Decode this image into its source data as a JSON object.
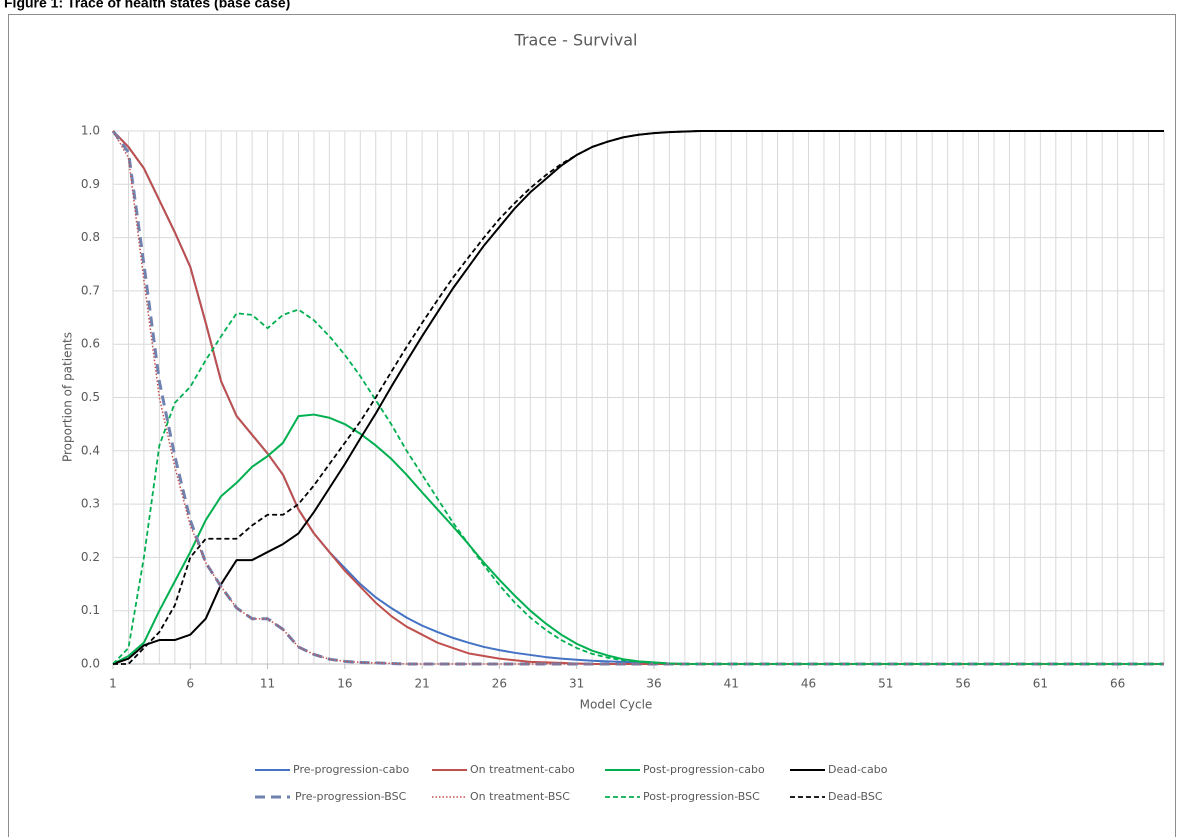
{
  "caption": "Figure 1: Trace of health states (base case)",
  "chart_data": {
    "type": "line",
    "title": "Trace - Survival",
    "x_label": "Model Cycle",
    "y_label": "Proportion of patients",
    "x": [
      1,
      2,
      3,
      4,
      5,
      6,
      7,
      8,
      9,
      10,
      11,
      12,
      13,
      14,
      15,
      16,
      17,
      18,
      19,
      20,
      21,
      22,
      23,
      24,
      25,
      26,
      27,
      28,
      29,
      30,
      31,
      32,
      33,
      34,
      35,
      36,
      37,
      38,
      39,
      40,
      41,
      42,
      43,
      44,
      45,
      46,
      47,
      48,
      49,
      50,
      51,
      52,
      53,
      54,
      55,
      56,
      57,
      58,
      59,
      60,
      61,
      62,
      63,
      64,
      65,
      66,
      67,
      68,
      69
    ],
    "xlim": [
      1,
      69
    ],
    "xticks": [
      1,
      6,
      11,
      16,
      21,
      26,
      31,
      36,
      41,
      46,
      51,
      56,
      61,
      66
    ],
    "ylim": [
      0,
      1
    ],
    "yticks": [
      {
        "value": 0,
        "label": "0.0"
      },
      0.1,
      0.2,
      0.3,
      0.4,
      0.5,
      0.6,
      0.7,
      0.8,
      0.9,
      {
        "value": 1,
        "label": "1.0"
      }
    ],
    "grid": true,
    "series": [
      {
        "name": "Pre-progression-cabo",
        "color": "#4472c4",
        "dash": "solid",
        "values": [
          1,
          0.97,
          0.93,
          0.87,
          0.81,
          0.745,
          0.64,
          0.53,
          0.465,
          0.43,
          0.395,
          0.355,
          0.29,
          0.245,
          0.21,
          0.18,
          0.15,
          0.125,
          0.105,
          0.087,
          0.072,
          0.06,
          0.049,
          0.04,
          0.032,
          0.026,
          0.021,
          0.017,
          0.013,
          0.01,
          0.008,
          0.006,
          0.005,
          0.004,
          0.003,
          0.002,
          0.001,
          0,
          0,
          0,
          0,
          0,
          0,
          0,
          0,
          0,
          0,
          0,
          0,
          0,
          0,
          0,
          0,
          0,
          0,
          0,
          0,
          0,
          0,
          0,
          0,
          0,
          0,
          0,
          0,
          0,
          0,
          0,
          0
        ]
      },
      {
        "name": "On treatment-cabo",
        "color": "#c0504d",
        "dash": "solid",
        "values": [
          1,
          0.97,
          0.93,
          0.87,
          0.81,
          0.745,
          0.64,
          0.53,
          0.465,
          0.43,
          0.395,
          0.355,
          0.29,
          0.245,
          0.21,
          0.175,
          0.145,
          0.115,
          0.09,
          0.07,
          0.055,
          0.04,
          0.03,
          0.02,
          0.015,
          0.01,
          0.007,
          0.004,
          0.003,
          0.002,
          0.001,
          0,
          0,
          0,
          0,
          0,
          0,
          0,
          0,
          0,
          0,
          0,
          0,
          0,
          0,
          0,
          0,
          0,
          0,
          0,
          0,
          0,
          0,
          0,
          0,
          0,
          0,
          0,
          0,
          0,
          0,
          0,
          0,
          0,
          0,
          0,
          0,
          0,
          0
        ]
      },
      {
        "name": "Post-progression-cabo",
        "color": "#00b050",
        "dash": "solid",
        "values": [
          0,
          0.015,
          0.04,
          0.1,
          0.155,
          0.21,
          0.27,
          0.315,
          0.34,
          0.37,
          0.39,
          0.415,
          0.465,
          0.468,
          0.462,
          0.45,
          0.432,
          0.41,
          0.385,
          0.355,
          0.322,
          0.29,
          0.258,
          0.225,
          0.19,
          0.158,
          0.128,
          0.1,
          0.076,
          0.055,
          0.038,
          0.025,
          0.016,
          0.009,
          0.005,
          0.003,
          0.001,
          0,
          0,
          0,
          0,
          0,
          0,
          0,
          0,
          0,
          0,
          0,
          0,
          0,
          0,
          0,
          0,
          0,
          0,
          0,
          0,
          0,
          0,
          0,
          0,
          0,
          0,
          0,
          0,
          0,
          0,
          0,
          0
        ]
      },
      {
        "name": "Dead-cabo",
        "color": "#000000",
        "dash": "solid",
        "values": [
          0,
          0.01,
          0.035,
          0.045,
          0.045,
          0.055,
          0.085,
          0.15,
          0.195,
          0.195,
          0.21,
          0.225,
          0.245,
          0.285,
          0.33,
          0.375,
          0.423,
          0.47,
          0.52,
          0.568,
          0.615,
          0.66,
          0.705,
          0.745,
          0.785,
          0.82,
          0.855,
          0.885,
          0.91,
          0.935,
          0.955,
          0.97,
          0.98,
          0.988,
          0.993,
          0.996,
          0.998,
          0.999,
          1,
          1,
          1,
          1,
          1,
          1,
          1,
          1,
          1,
          1,
          1,
          1,
          1,
          1,
          1,
          1,
          1,
          1,
          1,
          1,
          1,
          1,
          1,
          1,
          1,
          1,
          1,
          1,
          1,
          1,
          1
        ]
      },
      {
        "name": "Pre-progression-BSC",
        "color": "#7082b0",
        "dash": "longdash",
        "values": [
          1,
          0.96,
          0.75,
          0.53,
          0.39,
          0.27,
          0.19,
          0.145,
          0.105,
          0.085,
          0.085,
          0.065,
          0.032,
          0.018,
          0.009,
          0.005,
          0.003,
          0.002,
          0.001,
          0,
          0,
          0,
          0,
          0,
          0,
          0,
          0,
          0,
          0,
          0,
          0,
          0,
          0,
          0,
          0,
          0,
          0,
          0,
          0,
          0,
          0,
          0,
          0,
          0,
          0,
          0,
          0,
          0,
          0,
          0,
          0,
          0,
          0,
          0,
          0,
          0,
          0,
          0,
          0,
          0,
          0,
          0,
          0,
          0,
          0,
          0,
          0,
          0,
          0
        ]
      },
      {
        "name": "On treatment-BSC",
        "color": "#c0504d",
        "dash": "dotted",
        "values": [
          1,
          0.95,
          0.72,
          0.5,
          0.37,
          0.26,
          0.19,
          0.145,
          0.105,
          0.085,
          0.085,
          0.065,
          0.032,
          0.018,
          0.009,
          0.005,
          0.003,
          0.002,
          0.001,
          0,
          0,
          0,
          0,
          0,
          0,
          0,
          0,
          0,
          0,
          0,
          0,
          0,
          0,
          0,
          0,
          0,
          0,
          0,
          0,
          0,
          0,
          0,
          0,
          0,
          0,
          0,
          0,
          0,
          0,
          0,
          0,
          0,
          0,
          0,
          0,
          0,
          0,
          0,
          0,
          0,
          0,
          0,
          0,
          0,
          0,
          0,
          0,
          0,
          0
        ]
      },
      {
        "name": "Post-progression-BSC",
        "color": "#00b050",
        "dash": "dashed",
        "values": [
          0,
          0.03,
          0.2,
          0.41,
          0.49,
          0.52,
          0.57,
          0.615,
          0.658,
          0.655,
          0.63,
          0.655,
          0.665,
          0.645,
          0.615,
          0.58,
          0.54,
          0.495,
          0.45,
          0.4,
          0.355,
          0.31,
          0.265,
          0.225,
          0.185,
          0.148,
          0.115,
          0.087,
          0.064,
          0.045,
          0.03,
          0.019,
          0.012,
          0.007,
          0.004,
          0.002,
          0.001,
          0,
          0,
          0,
          0,
          0,
          0,
          0,
          0,
          0,
          0,
          0,
          0,
          0,
          0,
          0,
          0,
          0,
          0,
          0,
          0,
          0,
          0,
          0,
          0,
          0,
          0,
          0,
          0,
          0,
          0,
          0,
          0
        ]
      },
      {
        "name": "Dead-BSC",
        "color": "#000000",
        "dash": "dashed",
        "values": [
          0,
          0,
          0.03,
          0.06,
          0.11,
          0.2,
          0.235,
          0.235,
          0.235,
          0.26,
          0.28,
          0.28,
          0.3,
          0.335,
          0.375,
          0.415,
          0.455,
          0.5,
          0.548,
          0.595,
          0.64,
          0.683,
          0.725,
          0.763,
          0.8,
          0.835,
          0.865,
          0.893,
          0.917,
          0.938,
          0.955,
          0.97,
          0.98,
          0.988,
          0.993,
          0.996,
          0.998,
          0.999,
          1,
          1,
          1,
          1,
          1,
          1,
          1,
          1,
          1,
          1,
          1,
          1,
          1,
          1,
          1,
          1,
          1,
          1,
          1,
          1,
          1,
          1,
          1,
          1,
          1,
          1,
          1,
          1,
          1,
          1,
          1
        ]
      }
    ]
  }
}
